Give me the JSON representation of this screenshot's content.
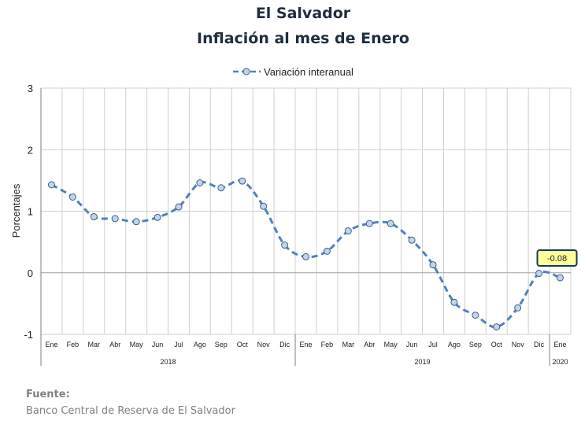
{
  "header": {
    "title": "El Salvador",
    "subtitle": "Inflación al mes de Enero"
  },
  "source": {
    "label": "Fuente:",
    "text": "Banco Central de Reserva de El Salvador"
  },
  "chart_data": {
    "type": "line",
    "ylabel": "Porcentajes",
    "ylim": [
      -1,
      3
    ],
    "yticks": [
      -1,
      0,
      1,
      2,
      3
    ],
    "grid": true,
    "legend_position": "top-center",
    "categories": [
      "Ene",
      "Feb",
      "Mar",
      "Abr",
      "May",
      "Jun",
      "Jul",
      "Ago",
      "Sep",
      "Oct",
      "Nov",
      "Dic",
      "Ene",
      "Feb",
      "Mar",
      "Abr",
      "May",
      "Jun",
      "Jul",
      "Ago",
      "Sep",
      "Oct",
      "Nov",
      "Dic",
      "Ene"
    ],
    "year_groups": [
      {
        "label": "2018",
        "count": 12
      },
      {
        "label": "2019",
        "count": 12
      },
      {
        "label": "2020",
        "count": 1
      }
    ],
    "series": [
      {
        "name": "Variación interanual",
        "color": "#4f81bd",
        "marker_fill": "#c5d3e8",
        "values": [
          1.43,
          1.23,
          0.91,
          0.88,
          0.83,
          0.9,
          1.07,
          1.46,
          1.38,
          1.49,
          1.08,
          0.45,
          0.26,
          0.35,
          0.68,
          0.8,
          0.8,
          0.53,
          0.13,
          -0.48,
          -0.69,
          -0.88,
          -0.57,
          -0.01,
          -0.08
        ]
      }
    ],
    "annotation": {
      "index": 24,
      "text": "-0.08",
      "fill": "#ffff99",
      "border": "#17375e"
    }
  }
}
